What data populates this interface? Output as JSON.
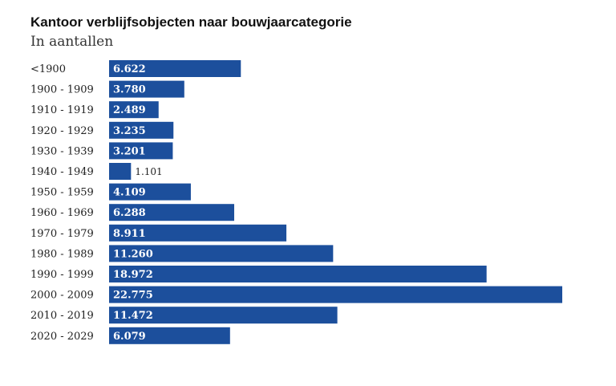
{
  "chart_data": {
    "type": "bar",
    "orientation": "horizontal",
    "title": "Kantoor verblijfsobjecten naar bouwjaarcategorie",
    "subtitle": "In aantallen",
    "categories": [
      "<1900",
      "1900 - 1909",
      "1910 - 1919",
      "1920 - 1929",
      "1930 - 1939",
      "1940 - 1949",
      "1950 - 1959",
      "1960 - 1969",
      "1970 - 1979",
      "1980 - 1989",
      "1990 - 1999",
      "2000 - 2009",
      "2010 - 2019",
      "2020 - 2029"
    ],
    "values": [
      6622,
      3780,
      2489,
      3235,
      3201,
      1101,
      4109,
      6288,
      8911,
      11260,
      18972,
      22775,
      11472,
      6079
    ],
    "value_labels": [
      "6.622",
      "3.780",
      "2.489",
      "3.235",
      "3.201",
      "1.101",
      "4.109",
      "6.288",
      "8.911",
      "11.260",
      "18.972",
      "22.775",
      "11.472",
      "6.079"
    ],
    "bar_color": "#1c4f9c",
    "xlabel": "",
    "ylabel": "",
    "xlim": [
      0,
      22775
    ],
    "grid": false
  }
}
